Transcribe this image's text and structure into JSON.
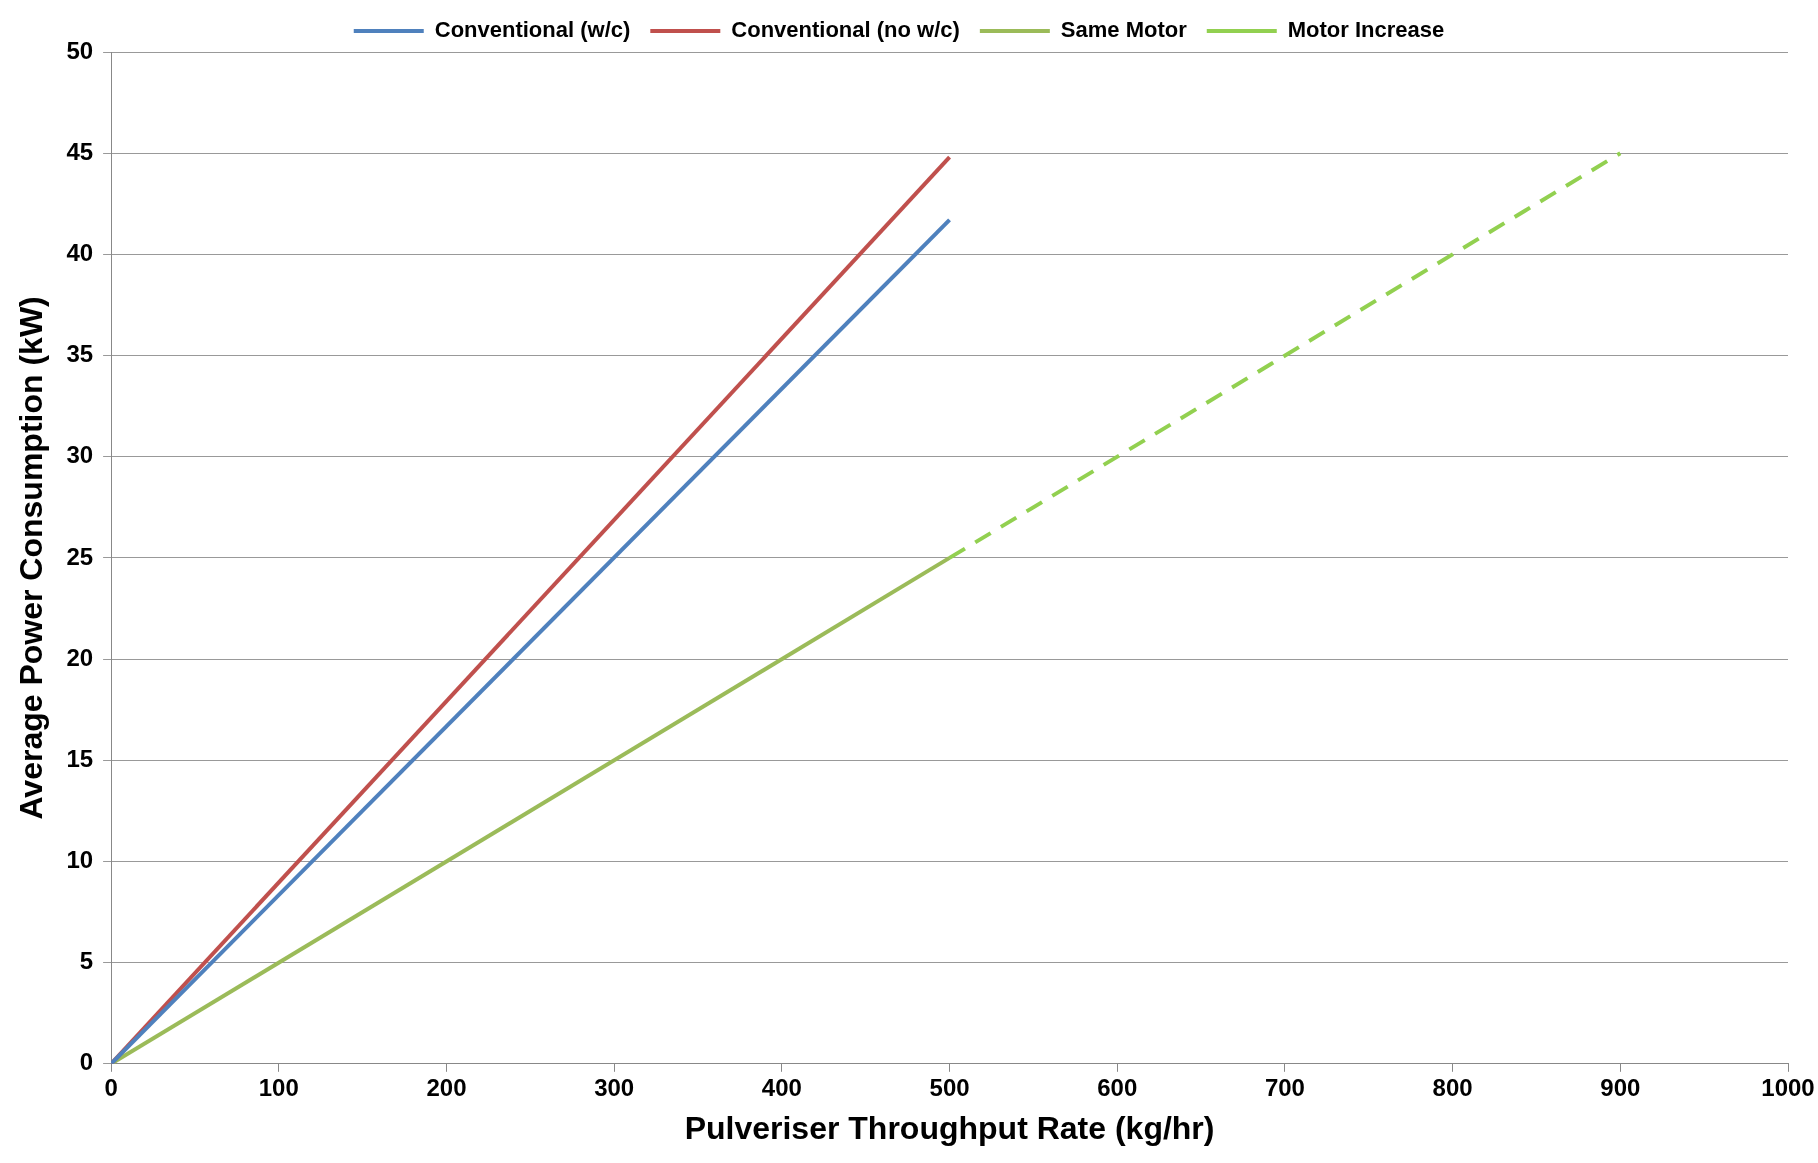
{
  "chart_data": {
    "type": "line",
    "xlabel": "Pulveriser Throughput Rate (kg/hr)",
    "ylabel": "Average Power Consumption (kW)",
    "series": [
      {
        "name": "Conventional (w/c)",
        "color": "#4f81bd",
        "x": [
          0,
          500
        ],
        "values": [
          0,
          41.7
        ]
      },
      {
        "name": "Conventional (no w/c)",
        "color": "#c0504d",
        "x": [
          0,
          500
        ],
        "values": [
          0,
          44.8
        ]
      },
      {
        "name": "Same Motor",
        "color": "#9bbb59",
        "x": [
          0,
          500
        ],
        "values": [
          0,
          25
        ]
      },
      {
        "name": "Motor Increase",
        "color": "#92d050",
        "x": [
          500,
          900
        ],
        "values": [
          25,
          45
        ],
        "line_style": "dashed"
      }
    ],
    "xlim": [
      0,
      1000
    ],
    "xticks": [
      0,
      100,
      200,
      300,
      400,
      500,
      600,
      700,
      800,
      900,
      1000
    ],
    "ylim": [
      0,
      50
    ],
    "yticks": [
      0,
      5,
      10,
      15,
      20,
      25,
      30,
      35,
      40,
      45,
      50
    ],
    "grid": "y",
    "legend": "top",
    "marker": "none"
  }
}
